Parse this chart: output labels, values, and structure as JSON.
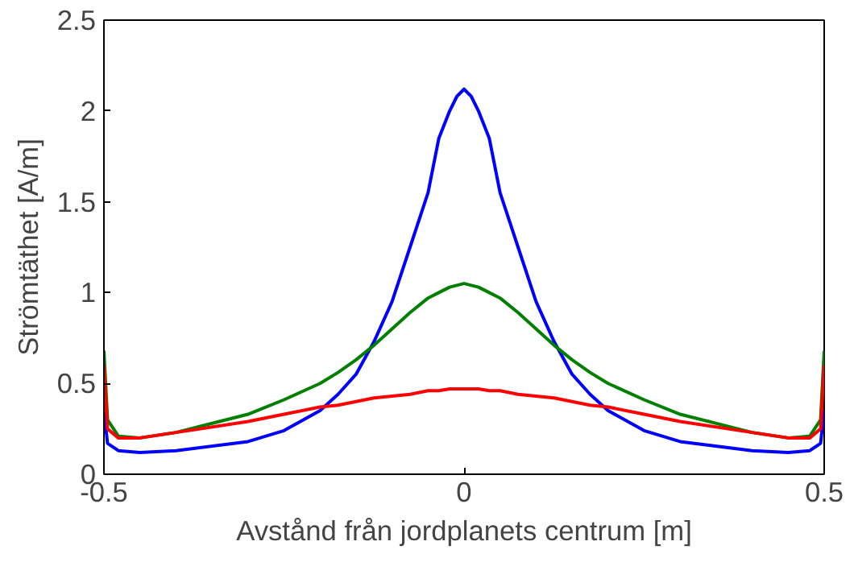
{
  "chart_data": {
    "type": "line",
    "xlabel": "Avstånd från jordplanets centrum [m]",
    "ylabel": "Strömtäthet [A/m]",
    "x": [
      -0.5,
      -0.495,
      -0.48,
      -0.45,
      -0.4,
      -0.3,
      -0.25,
      -0.2,
      -0.175,
      -0.15,
      -0.125,
      -0.1,
      -0.075,
      -0.05,
      -0.035,
      -0.02,
      -0.01,
      0,
      0.01,
      0.02,
      0.035,
      0.05,
      0.075,
      0.1,
      0.125,
      0.15,
      0.175,
      0.2,
      0.25,
      0.3,
      0.4,
      0.45,
      0.48,
      0.495,
      0.5
    ],
    "series": [
      {
        "color": "#0000ff",
        "values": [
          0.35,
          0.17,
          0.13,
          0.12,
          0.13,
          0.18,
          0.24,
          0.35,
          0.44,
          0.55,
          0.73,
          0.95,
          1.25,
          1.55,
          1.85,
          2.0,
          2.08,
          2.12,
          2.08,
          2.0,
          1.85,
          1.55,
          1.25,
          0.95,
          0.73,
          0.55,
          0.44,
          0.35,
          0.24,
          0.18,
          0.13,
          0.12,
          0.13,
          0.17,
          0.35
        ]
      },
      {
        "color": "#007f00",
        "values": [
          0.68,
          0.3,
          0.21,
          0.2,
          0.23,
          0.33,
          0.41,
          0.5,
          0.56,
          0.63,
          0.71,
          0.8,
          0.89,
          0.97,
          1.0,
          1.03,
          1.04,
          1.05,
          1.04,
          1.03,
          1.0,
          0.97,
          0.89,
          0.8,
          0.71,
          0.63,
          0.56,
          0.5,
          0.41,
          0.33,
          0.23,
          0.2,
          0.21,
          0.3,
          0.68
        ]
      },
      {
        "color": "#ff0000",
        "values": [
          0.6,
          0.25,
          0.2,
          0.2,
          0.23,
          0.29,
          0.33,
          0.37,
          0.38,
          0.4,
          0.42,
          0.43,
          0.44,
          0.46,
          0.46,
          0.47,
          0.47,
          0.47,
          0.47,
          0.47,
          0.46,
          0.46,
          0.44,
          0.43,
          0.42,
          0.4,
          0.38,
          0.37,
          0.33,
          0.29,
          0.23,
          0.2,
          0.2,
          0.25,
          0.6
        ]
      }
    ],
    "xlim": [
      -0.5,
      0.5
    ],
    "xticks": [
      -0.5,
      0,
      0.5
    ],
    "ylim": [
      0,
      2.5
    ],
    "yticks": [
      0,
      0.5,
      1,
      1.5,
      2,
      2.5
    ],
    "grid": false
  }
}
